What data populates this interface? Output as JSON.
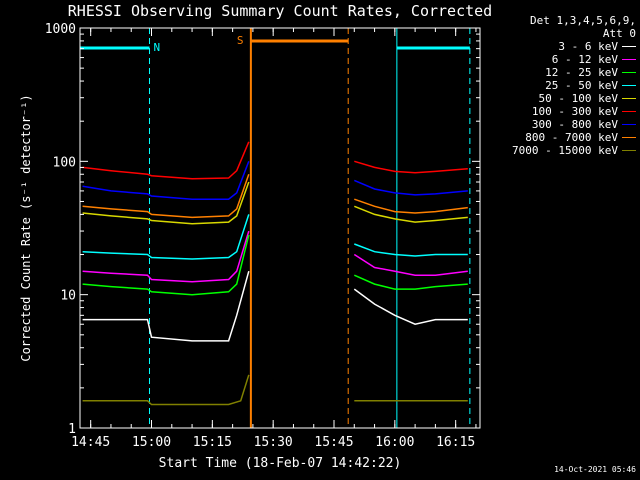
{
  "title": "RHESSI Observing Summary Count Rates, Corrected",
  "timestamp": "14-Oct-2021 05:46",
  "chart_data": {
    "type": "line",
    "title": "RHESSI Observing Summary Count Rates, Corrected",
    "xlabel": "Start Time (18-Feb-07 14:42:22)",
    "ylabel": "Corrected Count Rate (s⁻¹ detector⁻¹)",
    "y_scale": "log",
    "ylim": [
      1,
      1000
    ],
    "xlim": [
      "14:42:22",
      "16:21:00"
    ],
    "x_ticks": [
      "14:45",
      "15:00",
      "15:15",
      "15:30",
      "15:45",
      "16:00",
      "16:15"
    ],
    "y_ticks": [
      "1",
      "10",
      "100",
      "1000"
    ],
    "legend_header": [
      "Det 1,3,4,5,6,9,",
      "Att 0"
    ],
    "legend_position": "right",
    "series": [
      {
        "name": "3 - 6 keV",
        "color": "#ffffff",
        "x": [
          "14:43",
          "14:50",
          "14:59",
          "15:00",
          "15:10",
          "15:19",
          "15:21",
          "15:24",
          "15:50",
          "15:55",
          "16:00",
          "16:05",
          "16:10",
          "16:18"
        ],
        "y": [
          6.5,
          6.5,
          6.5,
          4.8,
          4.5,
          4.5,
          7,
          15,
          11,
          8.5,
          7,
          6,
          6.5,
          6.5
        ]
      },
      {
        "name": "6 - 12 keV",
        "color": "#ff00ff",
        "x": [
          "14:43",
          "14:50",
          "14:59",
          "15:00",
          "15:10",
          "15:19",
          "15:21",
          "15:24",
          "15:50",
          "15:55",
          "16:00",
          "16:05",
          "16:10",
          "16:18"
        ],
        "y": [
          15,
          14.5,
          14,
          13,
          12.5,
          13,
          15,
          30,
          20,
          16,
          15,
          14,
          14,
          15
        ]
      },
      {
        "name": "12 - 25 keV",
        "color": "#00ff00",
        "x": [
          "14:43",
          "14:50",
          "14:59",
          "15:00",
          "15:10",
          "15:19",
          "15:21",
          "15:24",
          "15:50",
          "15:55",
          "16:00",
          "16:05",
          "16:10",
          "16:18"
        ],
        "y": [
          12,
          11.5,
          11,
          10.5,
          10,
          10.5,
          12,
          28,
          14,
          12,
          11,
          11,
          11.5,
          12
        ]
      },
      {
        "name": "25 - 50 keV",
        "color": "#00ffff",
        "x": [
          "14:43",
          "14:50",
          "14:59",
          "15:00",
          "15:10",
          "15:19",
          "15:21",
          "15:24",
          "15:50",
          "15:55",
          "16:00",
          "16:05",
          "16:10",
          "16:18"
        ],
        "y": [
          21,
          20.5,
          20,
          19,
          18.5,
          19,
          21,
          40,
          24,
          21,
          20,
          19.5,
          20,
          20
        ]
      },
      {
        "name": "50 - 100 keV",
        "color": "#d8d800",
        "x": [
          "14:43",
          "14:50",
          "14:59",
          "15:00",
          "15:10",
          "15:19",
          "15:21",
          "15:24",
          "15:50",
          "15:55",
          "16:00",
          "16:05",
          "16:10",
          "16:18"
        ],
        "y": [
          41,
          39,
          37,
          36,
          34,
          35,
          39,
          70,
          46,
          40,
          37,
          35,
          36,
          38
        ]
      },
      {
        "name": "100 - 300 keV",
        "color": "#ff0000",
        "x": [
          "14:43",
          "14:50",
          "14:59",
          "15:00",
          "15:10",
          "15:19",
          "15:21",
          "15:24",
          "15:50",
          "15:55",
          "16:00",
          "16:05",
          "16:10",
          "16:18"
        ],
        "y": [
          90,
          85,
          80,
          78,
          74,
          75,
          85,
          140,
          100,
          90,
          84,
          82,
          84,
          88
        ]
      },
      {
        "name": "300 - 800 keV",
        "color": "#0000ff",
        "x": [
          "14:43",
          "14:50",
          "14:59",
          "15:00",
          "15:10",
          "15:19",
          "15:21",
          "15:24",
          "15:50",
          "15:55",
          "16:00",
          "16:05",
          "16:10",
          "16:18"
        ],
        "y": [
          65,
          60,
          57,
          55,
          52,
          52,
          58,
          100,
          72,
          62,
          58,
          56,
          57,
          60
        ]
      },
      {
        "name": "800 - 7000 keV",
        "color": "#ff8000",
        "x": [
          "14:43",
          "14:50",
          "14:59",
          "15:00",
          "15:10",
          "15:19",
          "15:21",
          "15:24",
          "15:50",
          "15:55",
          "16:00",
          "16:05",
          "16:10",
          "16:18"
        ],
        "y": [
          46,
          44,
          42,
          40,
          38,
          39,
          44,
          80,
          52,
          46,
          42,
          41,
          42,
          45
        ]
      },
      {
        "name": "7000 - 15000 keV",
        "color": "#808000",
        "x": [
          "14:43",
          "14:59",
          "15:00",
          "15:10",
          "15:19",
          "15:22",
          "15:24",
          "15:50",
          "16:00",
          "16:10",
          "16:18"
        ],
        "y": [
          1.6,
          1.6,
          1.5,
          1.5,
          1.5,
          1.6,
          2.5,
          1.6,
          1.6,
          1.6,
          1.6
        ]
      }
    ],
    "flags": {
      "night_color": "#00ffff",
      "saa_color": "#ff8000",
      "night_label": "N",
      "saa_label": "S",
      "night_intervals": [
        [
          "14:42:22",
          "14:59:30"
        ],
        [
          "16:00:30",
          "16:18:30"
        ]
      ],
      "saa_interval": [
        "15:24:30",
        "15:48:30"
      ]
    }
  }
}
